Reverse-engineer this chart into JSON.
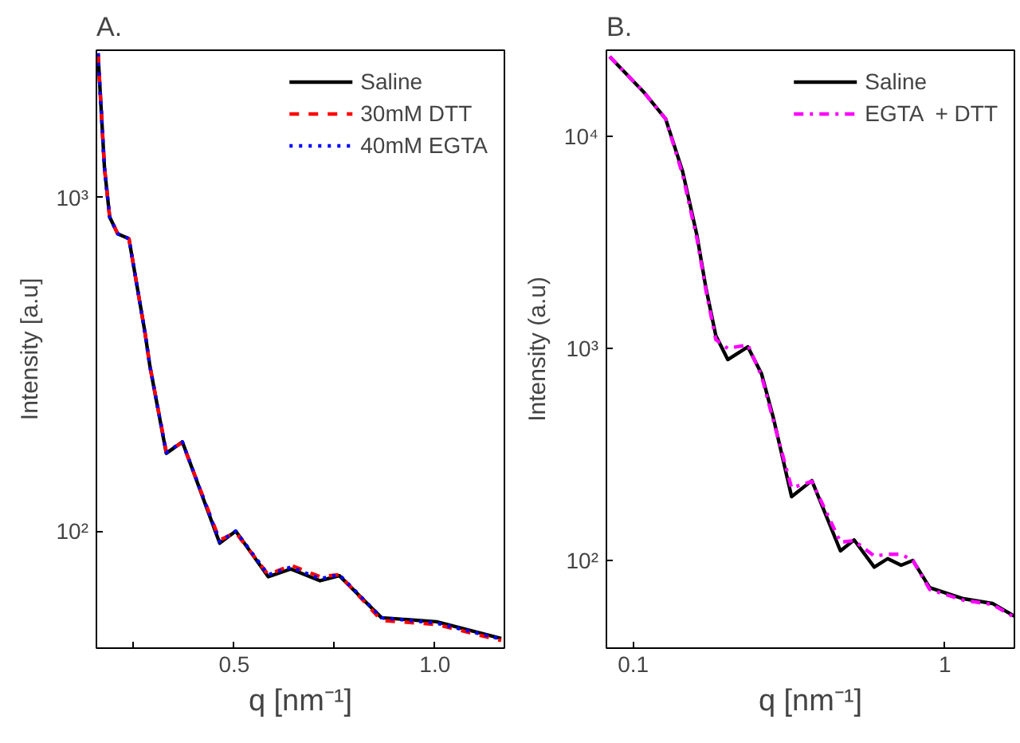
{
  "chart_data": [
    {
      "type": "line",
      "title": "A.",
      "xlabel": "q [nm⁻¹]",
      "ylabel": "Intensity [a.u]",
      "log": "y",
      "legend": "top right",
      "grid": false,
      "xlim": [
        0.157,
        1.173
      ],
      "xticks": [
        {
          "value": 0.25,
          "label": null
        },
        0.5,
        {
          "value": 0.75,
          "label": null
        },
        {
          "value": 1.0,
          "label": "1.0"
        }
      ],
      "ylim": [
        44.6,
        2760
      ],
      "yticks": [
        {
          "value": 100,
          "label": "10²"
        },
        {
          "value": 1000,
          "label": "10³"
        }
      ],
      "x": [
        0.161,
        0.177,
        0.19,
        0.21,
        0.238,
        0.278,
        0.29,
        0.331,
        0.371,
        0.464,
        0.504,
        0.585,
        0.641,
        0.714,
        0.762,
        0.867,
        1.004,
        1.165
      ],
      "series": [
        {
          "name": "Saline",
          "color": "#000000",
          "line_style": "solid",
          "values": [
            2700,
            1227,
            873,
            778,
            752,
            393,
            313,
            171,
            185,
            92,
            100,
            73,
            77,
            71,
            73.5,
            55,
            53.5,
            47.7
          ]
        },
        {
          "name": "30mM DTT",
          "color": "#ff0000",
          "line_style": "dashed",
          "values": [
            2700,
            1227,
            873,
            778,
            752,
            393,
            313,
            173,
            184,
            94,
            99,
            74,
            79,
            73,
            74,
            54,
            52.5,
            47
          ]
        },
        {
          "name": "40mM EGTA",
          "color": "#0000ff",
          "line_style": "dotted",
          "values": [
            2700,
            1227,
            873,
            778,
            752,
            393,
            313,
            172,
            185,
            93,
            100,
            74,
            78,
            72,
            74,
            55,
            53,
            47.5
          ]
        }
      ]
    },
    {
      "type": "line",
      "title": "B.",
      "xlabel": "q [nm⁻¹]",
      "ylabel": "Intensity (a.u)",
      "log": "xy",
      "legend": "top right",
      "grid": false,
      "xlim": [
        0.082,
        1.67
      ],
      "xticks": [
        0.1,
        1
      ],
      "ylim": [
        38.6,
        25500
      ],
      "yticks": [
        {
          "value": 100,
          "label": "10²"
        },
        {
          "value": 1000,
          "label": "10³"
        },
        {
          "value": 10000,
          "label": "10⁴"
        }
      ],
      "x": [
        0.084,
        0.108,
        0.127,
        0.144,
        0.16,
        0.171,
        0.184,
        0.201,
        0.233,
        0.258,
        0.281,
        0.322,
        0.374,
        0.462,
        0.511,
        0.593,
        0.655,
        0.723,
        0.789,
        0.893,
        1.146,
        1.42,
        1.67
      ],
      "series": [
        {
          "name": "Saline",
          "color": "#000000",
          "line_style": "solid",
          "values": [
            23800,
            16200,
            12100,
            6830,
            3420,
            1930,
            1150,
            886,
            1018,
            758,
            475,
            200,
            238,
            111,
            125,
            93,
            102,
            95,
            100,
            74.5,
            66,
            62.7,
            54.6
          ]
        },
        {
          "name": "EGTA  + DTT",
          "color": "#ff00ff",
          "line_style": "dashdot",
          "values": [
            23800,
            16200,
            12100,
            6600,
            3300,
            1880,
            1100,
            1000,
            1040,
            740,
            460,
            220,
            236,
            122,
            124,
            105,
            107,
            107,
            100,
            73,
            65,
            62,
            54
          ]
        }
      ]
    }
  ]
}
